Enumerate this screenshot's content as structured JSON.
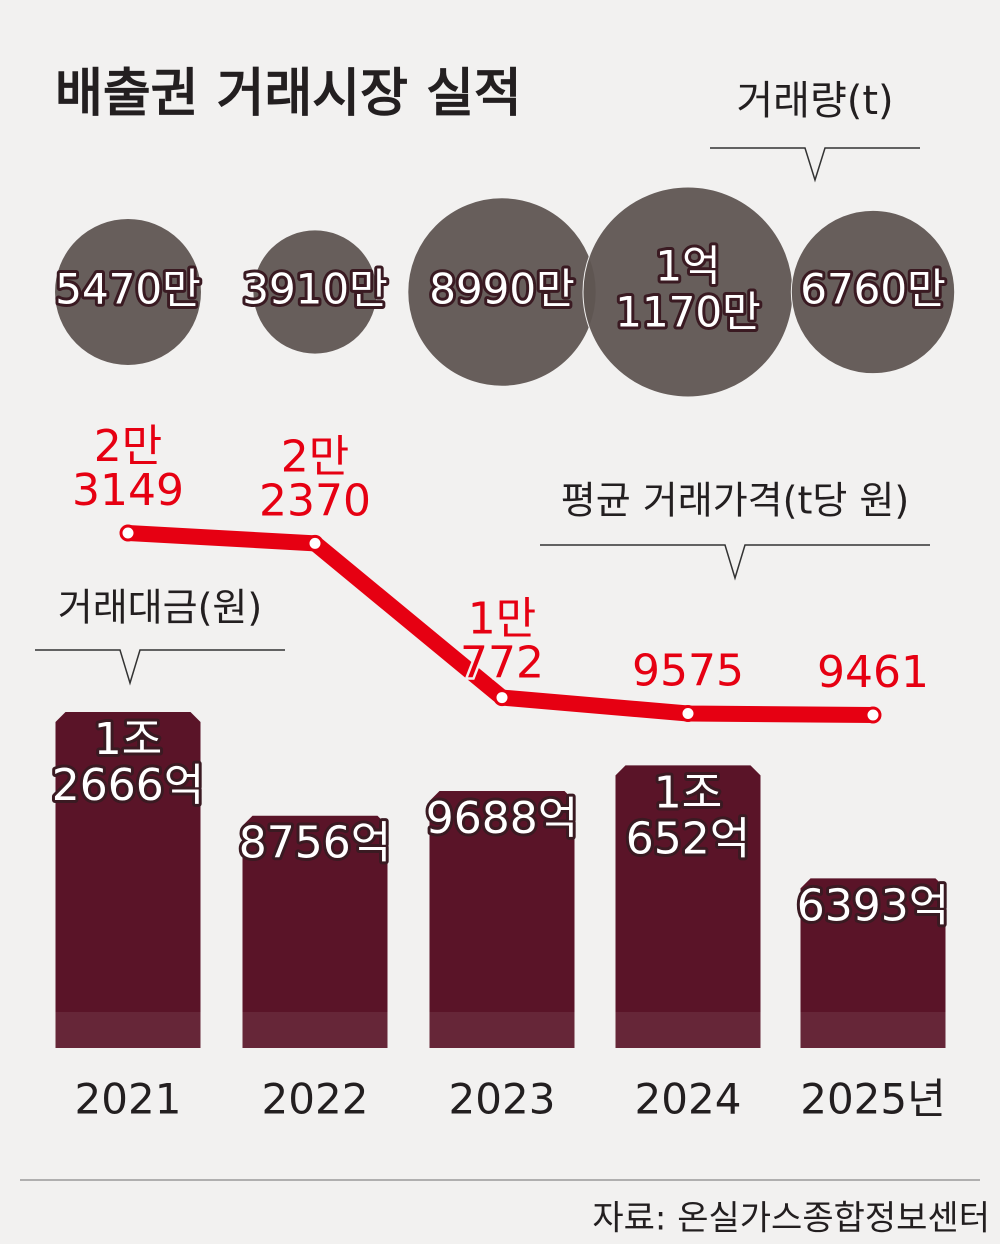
{
  "title": "배출권 거래시장 실적",
  "source": "자료: 온실가스종합정보센터",
  "chart_data": [
    {
      "type": "bubble",
      "title": "거래량(t)",
      "color": "#5f5552",
      "values": [
        54700000,
        39100000,
        89900000,
        111700000,
        67600000
      ],
      "value_labels": [
        [
          "5470만"
        ],
        [
          "3910만"
        ],
        [
          "8990만"
        ],
        [
          "1억",
          "1170만"
        ],
        [
          "6760만"
        ]
      ]
    },
    {
      "type": "line",
      "title": "평균 거래가격(t당 원)",
      "color": "#e60012",
      "values": [
        23149,
        22370,
        10772,
        9575,
        9461
      ],
      "value_labels": [
        [
          "2만",
          "3149"
        ],
        [
          "2만",
          "2370"
        ],
        [
          "1만",
          "772"
        ],
        [
          "9575"
        ],
        [
          "9461"
        ]
      ]
    },
    {
      "type": "bar",
      "title": "거래대금(원)",
      "color": "#5a1428",
      "categories": [
        "2021",
        "2022",
        "2023",
        "2024",
        "2025년"
      ],
      "values": [
        1266600000000,
        875600000000,
        968800000000,
        1065200000000,
        639300000000
      ],
      "value_labels": [
        [
          "1조",
          "2666억"
        ],
        [
          "8756억"
        ],
        [
          "9688억"
        ],
        [
          "1조",
          "652억"
        ],
        [
          "6393억"
        ]
      ]
    }
  ]
}
